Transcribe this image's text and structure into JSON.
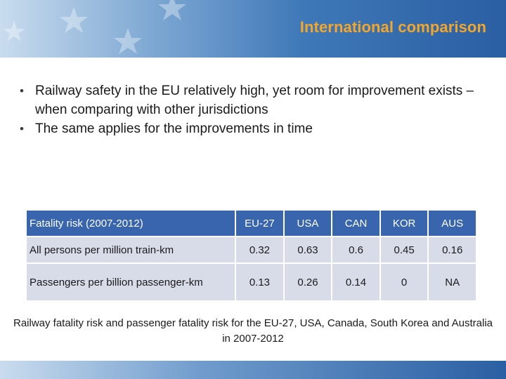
{
  "slide": {
    "title": "International comparison",
    "bullets": [
      "Railway safety in the EU relatively high, yet room for improvement exists – when comparing with other jurisdictions",
      "The same applies for the improvements in time"
    ],
    "bullet_glyph": "•",
    "table": {
      "headers": [
        "Fatality risk (2007-2012)",
        "EU-27",
        "USA",
        "CAN",
        "KOR",
        "AUS"
      ],
      "rows": [
        [
          "All persons per million train-km",
          "0.32",
          "0.63",
          "0.6",
          "0.45",
          "0.16"
        ],
        [
          "Passengers per billion passenger-km",
          "0.13",
          "0.26",
          "0.14",
          "0",
          "NA"
        ]
      ]
    },
    "caption": "Railway fatality risk and passenger fatality risk for the EU-27, USA, Canada, South Korea and Australia in 2007-2012"
  },
  "colors": {
    "title": "#f3a62a",
    "header_band": "#2a5fa3",
    "table_header": "#3865ad",
    "table_body": "#d7dce8"
  }
}
